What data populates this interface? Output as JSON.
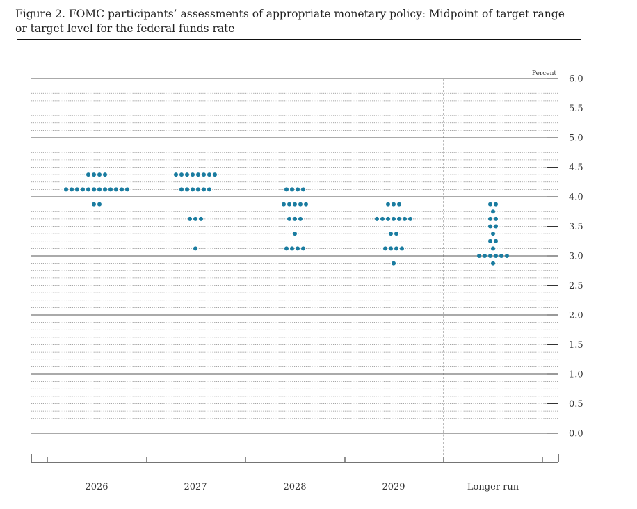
{
  "figure": {
    "title": "Figure 2. FOMC participants’ assessments of appropriate monetary policy: Midpoint of target range or target level for the federal funds rate"
  },
  "chart_data": {
    "type": "scatter",
    "style": "dot-plot",
    "title": "Figure 2. FOMC participants’ assessments of appropriate monetary policy: Midpoint of target range or target level for the federal funds rate",
    "unit_label": "Percent",
    "categories": [
      "2026",
      "2027",
      "2028",
      "2029",
      "Longer run"
    ],
    "ylim": [
      0.0,
      6.0
    ],
    "yticks": [
      "6.0",
      "5.5",
      "5.0",
      "4.5",
      "4.0",
      "3.5",
      "3.0",
      "2.5",
      "2.0",
      "1.5",
      "1.0",
      "0.5",
      "0.0"
    ],
    "grid": true,
    "dot_color": "#1a7ca0",
    "points": [
      {
        "category": "2026",
        "counts": [
          {
            "y": 4.375,
            "n": 4
          },
          {
            "y": 4.125,
            "n": 12
          },
          {
            "y": 3.875,
            "n": 2
          }
        ]
      },
      {
        "category": "2027",
        "counts": [
          {
            "y": 4.375,
            "n": 8
          },
          {
            "y": 4.125,
            "n": 6
          },
          {
            "y": 3.625,
            "n": 3
          },
          {
            "y": 3.125,
            "n": 1
          }
        ]
      },
      {
        "category": "2028",
        "counts": [
          {
            "y": 4.125,
            "n": 4
          },
          {
            "y": 3.875,
            "n": 5
          },
          {
            "y": 3.625,
            "n": 3
          },
          {
            "y": 3.375,
            "n": 1
          },
          {
            "y": 3.125,
            "n": 4
          }
        ]
      },
      {
        "category": "2029",
        "counts": [
          {
            "y": 3.875,
            "n": 3
          },
          {
            "y": 3.625,
            "n": 7
          },
          {
            "y": 3.375,
            "n": 2
          },
          {
            "y": 3.125,
            "n": 4
          },
          {
            "y": 2.875,
            "n": 1
          }
        ]
      },
      {
        "category": "Longer run",
        "counts": [
          {
            "y": 3.875,
            "n": 2
          },
          {
            "y": 3.75,
            "n": 1
          },
          {
            "y": 3.625,
            "n": 2
          },
          {
            "y": 3.5,
            "n": 2
          },
          {
            "y": 3.375,
            "n": 1
          },
          {
            "y": 3.25,
            "n": 2
          },
          {
            "y": 3.125,
            "n": 1
          },
          {
            "y": 3.0,
            "n": 6
          },
          {
            "y": 2.875,
            "n": 1
          }
        ]
      }
    ]
  }
}
